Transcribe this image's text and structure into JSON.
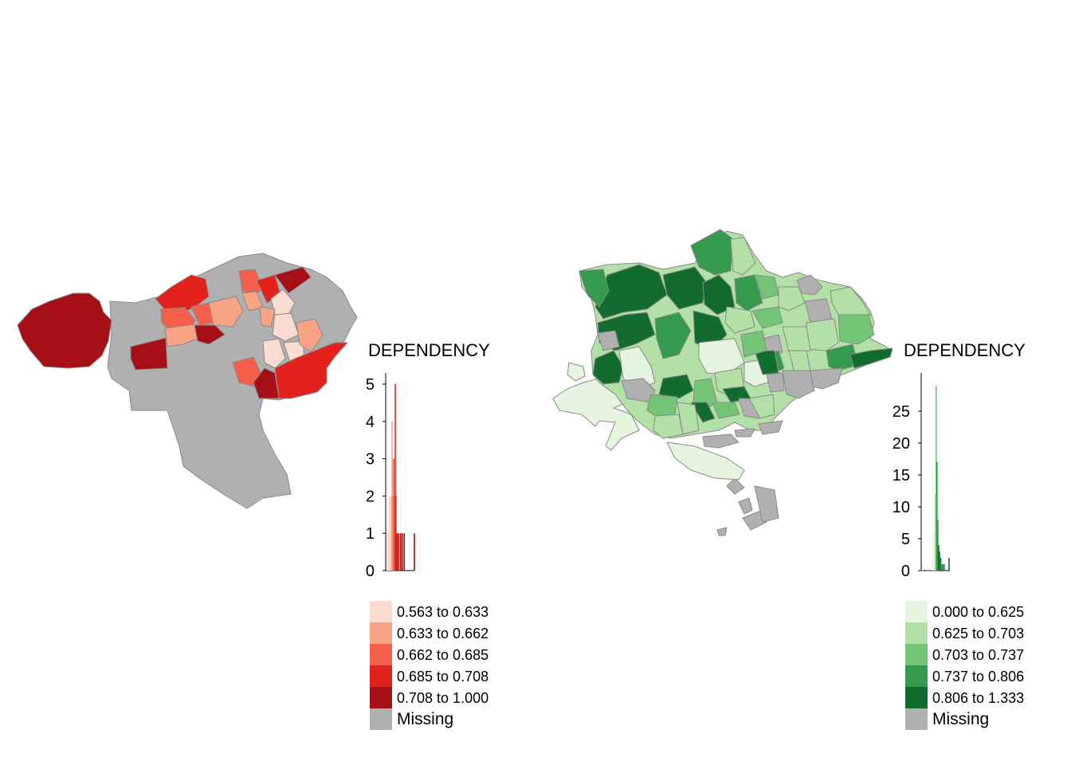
{
  "panels": [
    {
      "id": "left",
      "legend_title": "DEPENDENCY",
      "palette": {
        "c1": "#fcdcd0",
        "c2": "#f9a385",
        "c3": "#f55f4a",
        "c4": "#e3211d",
        "c5": "#a50f15",
        "missing": "#b0b0b0"
      },
      "legend": [
        {
          "label": "0.563 to 0.633",
          "color": "#fcdcd0"
        },
        {
          "label": "0.633 to 0.662",
          "color": "#f9a385"
        },
        {
          "label": "0.662 to 0.685",
          "color": "#f55f4a"
        },
        {
          "label": "0.685 to 0.708",
          "color": "#e3211d"
        },
        {
          "label": "0.708 to 1.000",
          "color": "#a50f15"
        },
        {
          "label": "Missing",
          "color": "#b0b0b0"
        }
      ],
      "histogram": {
        "y_ticks": [
          "0",
          "1",
          "2",
          "3",
          "4",
          "5"
        ],
        "y_max": 5.3,
        "x_range": [
          0.55,
          1.0
        ],
        "bins": [
          {
            "x": 0.566,
            "count": 1,
            "color": "#fcdcd0"
          },
          {
            "x": 0.574,
            "count": 1,
            "color": "#fcdcd0"
          },
          {
            "x": 0.583,
            "count": 1,
            "color": "#fcdcd0"
          },
          {
            "x": 0.592,
            "count": 1,
            "color": "#fcdcd0"
          },
          {
            "x": 0.6,
            "count": 2,
            "color": "#fcdcd0"
          },
          {
            "x": 0.61,
            "count": 1,
            "color": "#fcdcd0"
          },
          {
            "x": 0.62,
            "count": 2,
            "color": "#fcdcd0"
          },
          {
            "x": 0.63,
            "count": 2,
            "color": "#f9a385"
          },
          {
            "x": 0.64,
            "count": 4,
            "color": "#f9a385"
          },
          {
            "x": 0.65,
            "count": 3,
            "color": "#f9a385"
          },
          {
            "x": 0.66,
            "count": 2,
            "color": "#f55f4a"
          },
          {
            "x": 0.67,
            "count": 3,
            "color": "#f55f4a"
          },
          {
            "x": 0.68,
            "count": 2,
            "color": "#f55f4a"
          },
          {
            "x": 0.69,
            "count": 5,
            "color": "#e3211d"
          },
          {
            "x": 0.7,
            "count": 2,
            "color": "#e3211d"
          },
          {
            "x": 0.72,
            "count": 1,
            "color": "#a50f15"
          },
          {
            "x": 0.745,
            "count": 1,
            "color": "#a50f15"
          },
          {
            "x": 0.775,
            "count": 1,
            "color": "#a50f15"
          },
          {
            "x": 0.8,
            "count": 1,
            "color": "#a50f15"
          },
          {
            "x": 0.83,
            "count": 1,
            "color": "#a50f15"
          },
          {
            "x": 0.99,
            "count": 1,
            "color": "#a50f15"
          }
        ]
      }
    },
    {
      "id": "right",
      "legend_title": "DEPENDENCY",
      "palette": {
        "c1": "#e5f5e0",
        "c2": "#b3e0a6",
        "c3": "#74c476",
        "c4": "#339a4e",
        "c5": "#126b2f",
        "missing": "#b0b0b0"
      },
      "legend": [
        {
          "label": "0.000 to 0.625",
          "color": "#e5f5e0"
        },
        {
          "label": "0.625 to 0.703",
          "color": "#b3e0a6"
        },
        {
          "label": "0.703 to 0.737",
          "color": "#74c476"
        },
        {
          "label": "0.737 to 0.806",
          "color": "#339a4e"
        },
        {
          "label": "0.806 to 1.333",
          "color": "#126b2f"
        },
        {
          "label": "Missing",
          "color": "#b0b0b0"
        }
      ],
      "histogram": {
        "y_ticks": [
          "0",
          "5",
          "10",
          "15",
          "20",
          "25"
        ],
        "y_max": 31,
        "x_range": [
          0.0,
          1.4
        ],
        "bins": [
          {
            "x": 0.02,
            "count": 1,
            "color": "#e5f5e0"
          },
          {
            "x": 0.3,
            "count": 1,
            "color": "#e5f5e0"
          },
          {
            "x": 0.5,
            "count": 2,
            "color": "#e5f5e0"
          },
          {
            "x": 0.58,
            "count": 6,
            "color": "#e5f5e0"
          },
          {
            "x": 0.65,
            "count": 12,
            "color": "#b3e0a6"
          },
          {
            "x": 0.7,
            "count": 29,
            "color": "#74c476"
          },
          {
            "x": 0.74,
            "count": 17,
            "color": "#339a4e"
          },
          {
            "x": 0.78,
            "count": 8,
            "color": "#339a4e"
          },
          {
            "x": 0.82,
            "count": 4,
            "color": "#126b2f"
          },
          {
            "x": 0.86,
            "count": 3,
            "color": "#126b2f"
          },
          {
            "x": 0.92,
            "count": 2,
            "color": "#126b2f"
          },
          {
            "x": 1.0,
            "count": 1,
            "color": "#126b2f"
          },
          {
            "x": 1.08,
            "count": 1,
            "color": "#126b2f"
          },
          {
            "x": 1.33,
            "count": 2,
            "color": "#126b2f"
          }
        ]
      }
    }
  ]
}
